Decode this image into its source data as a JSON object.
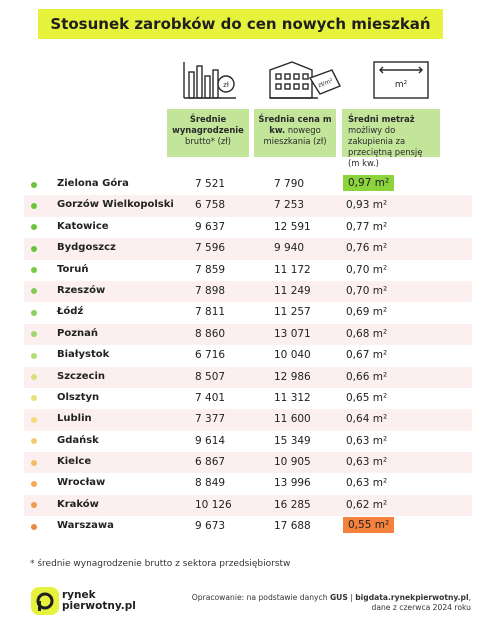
{
  "title": "Stosunek zarobków do cen nowych mieszkań",
  "headers": {
    "col1_bold": "Średnie wynagrodzenie",
    "col1_rest": "brutto* (zł)",
    "col2_bold": "Średnia cena m kw.",
    "col2_rest": "nowego mieszkania (zł)",
    "col3_bold": "Średni metraż",
    "col3_rest": "możliwy do zakupienia za przeciętną pensję (m kw.)"
  },
  "icons": {
    "col1": "bar-chart-with-coin-zl-icon",
    "col1_coin_text": "zł",
    "col2": "building-with-price-tag-icon",
    "col2_tag_text": "zł/m²",
    "col3": "floor-area-m2-icon",
    "col3_text": "m²"
  },
  "unit": "m²",
  "chart_data": {
    "type": "table",
    "columns": [
      "Miasto",
      "Średnie wynagrodzenie brutto* (zł)",
      "Średnia cena m kw. nowego mieszkania (zł)",
      "Średni metraż możliwy do zakupienia za przeciętną pensję (m kw.)"
    ],
    "rows": [
      {
        "city": "Zielona Góra",
        "wage": "7 521",
        "price": "7 790",
        "area": "0,97",
        "dot": "#6cc43e",
        "highlight": "#8cd43c"
      },
      {
        "city": "Gorzów Wielkopolski",
        "wage": "6 758",
        "price": "7 253",
        "area": "0,93",
        "dot": "#6cc43e"
      },
      {
        "city": "Katowice",
        "wage": "9 637",
        "price": "12 591",
        "area": "0,77",
        "dot": "#6cc43e"
      },
      {
        "city": "Bydgoszcz",
        "wage": "7 596",
        "price": "9 940",
        "area": "0,76",
        "dot": "#6cc43e"
      },
      {
        "city": "Toruń",
        "wage": "7 859",
        "price": "11 172",
        "area": "0,70",
        "dot": "#77c846"
      },
      {
        "city": "Rzeszów",
        "wage": "7 898",
        "price": "11 249",
        "area": "0,70",
        "dot": "#83cc52"
      },
      {
        "city": "Łódź",
        "wage": "7 811",
        "price": "11 257",
        "area": "0,69",
        "dot": "#8ed05e"
      },
      {
        "city": "Poznań",
        "wage": "8 860",
        "price": "13 071",
        "area": "0,68",
        "dot": "#a0d66e"
      },
      {
        "city": "Białystok",
        "wage": "6 716",
        "price": "10 040",
        "area": "0,67",
        "dot": "#b4dc7a"
      },
      {
        "city": "Szczecin",
        "wage": "8 507",
        "price": "12 986",
        "area": "0,66",
        "dot": "#d6e27c"
      },
      {
        "city": "Olsztyn",
        "wage": "7 401",
        "price": "11 312",
        "area": "0,65",
        "dot": "#e8e27a"
      },
      {
        "city": "Lublin",
        "wage": "7 377",
        "price": "11 600",
        "area": "0,64",
        "dot": "#f0dc78"
      },
      {
        "city": "Gdańsk",
        "wage": "9 614",
        "price": "15 349",
        "area": "0,63",
        "dot": "#f2cc6c"
      },
      {
        "city": "Kielce",
        "wage": "6 867",
        "price": "10 905",
        "area": "0,63",
        "dot": "#f2bc62"
      },
      {
        "city": "Wrocław",
        "wage": "8 849",
        "price": "13 996",
        "area": "0,63",
        "dot": "#f0aa58"
      },
      {
        "city": "Kraków",
        "wage": "10 126",
        "price": "16 285",
        "area": "0,62",
        "dot": "#ee9a4e"
      },
      {
        "city": "Warszawa",
        "wage": "9 673",
        "price": "17 688",
        "area": "0,55",
        "dot": "#ec8a44",
        "highlight": "#f4823c"
      }
    ]
  },
  "footnote": "*  średnie wynagrodzenie brutto z sektora przedsiębiorstw",
  "logo": {
    "line1": "rynek",
    "line2": "pierwotny.pl"
  },
  "source": {
    "prefix": "Opracowanie: na podstawie danych ",
    "gus": "GUS",
    "sep": " | ",
    "site": "bigdata.rynekpierwotny.pl",
    "suffix": ",",
    "line2": "dane z czerwca 2024 roku"
  }
}
